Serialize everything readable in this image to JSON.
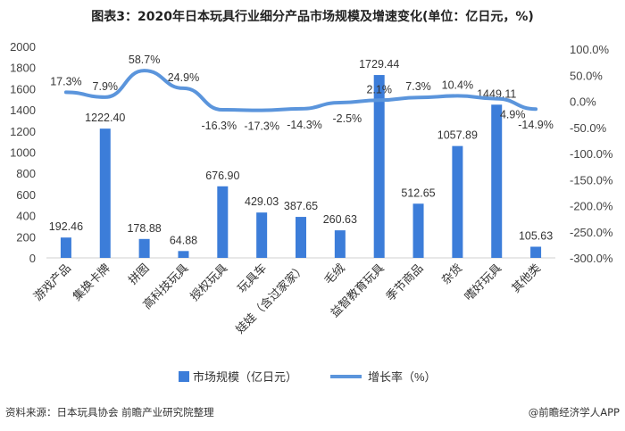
{
  "chart_data": {
    "type": "bar",
    "title": "图表3：2020年日本玩具行业细分产品市场规模及增速变化(单位：亿日元，%)",
    "categories": [
      "游戏产品",
      "集换卡牌",
      "拼图",
      "高科技玩具",
      "授权玩具",
      "玩具车",
      "娃娃（含过家家）",
      "毛绒",
      "益智教育玩具",
      "季节商品",
      "杂货",
      "嗜好玩具",
      "其他类"
    ],
    "series": [
      {
        "name": "市场规模（亿日元）",
        "type": "bar",
        "axis": "left",
        "color": "#3c7dd9",
        "values": [
          192.46,
          1222.4,
          178.88,
          64.88,
          676.9,
          429.03,
          387.65,
          260.63,
          1729.44,
          512.65,
          1057.89,
          1449.11,
          105.63
        ],
        "labels": [
          "192.46",
          "1222.40",
          "178.88",
          "64.88",
          "676.90",
          "429.03",
          "387.65",
          "260.63",
          "1729.44",
          "512.65",
          "1057.89",
          "1449.11",
          "105.63"
        ]
      },
      {
        "name": "增长率（%）",
        "type": "line",
        "axis": "right",
        "color": "#5b95dc",
        "values": [
          17.3,
          7.9,
          58.7,
          24.9,
          -16.3,
          -17.3,
          -14.3,
          -2.5,
          2.1,
          7.3,
          10.4,
          4.9,
          -14.9
        ],
        "labels": [
          "17.3%",
          "7.9%",
          "58.7%",
          "24.9%",
          "-16.3%",
          "-17.3%",
          "-14.3%",
          "-2.5%",
          "2.1%",
          "7.3%",
          "10.4%",
          "4.9%",
          "-14.9%"
        ]
      }
    ],
    "ylim_left": [
      0,
      2000
    ],
    "yticks_left": [
      "0",
      "200",
      "400",
      "600",
      "800",
      "1000",
      "1200",
      "1400",
      "1600",
      "1800",
      "2000"
    ],
    "ylim_right": [
      -300,
      100
    ],
    "yticks_right": [
      "-300.0%",
      "-250.0%",
      "-200.0%",
      "-150.0%",
      "-100.0%",
      "-50.0%",
      "0.0%",
      "50.0%",
      "100.0%"
    ],
    "legend_position": "bottom"
  },
  "footer": {
    "source": "资料来源：日本玩具协会 前瞻产业研究院整理",
    "brand": "@前瞻经济学人APP"
  }
}
